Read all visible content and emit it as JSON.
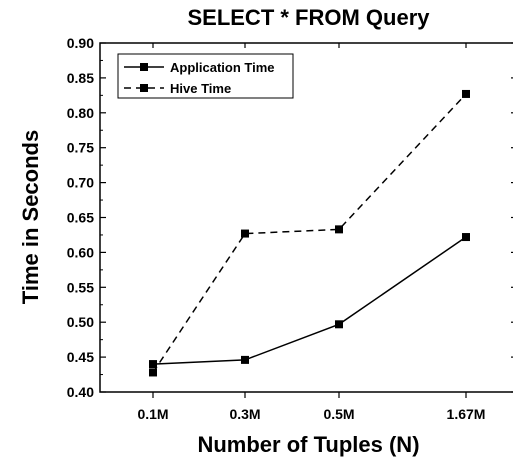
{
  "chart_data": {
    "type": "line",
    "title": "SELECT * FROM Query",
    "xlabel": "Number of Tuples (N)",
    "ylabel": "Time in Seconds",
    "categories": [
      "0.1M",
      "0.3M",
      "0.5M",
      "1.67M"
    ],
    "ylim": [
      0.4,
      0.9
    ],
    "yticks": [
      "0.40",
      "0.45",
      "0.50",
      "0.55",
      "0.60",
      "0.65",
      "0.70",
      "0.75",
      "0.80",
      "0.85",
      "0.90"
    ],
    "grid": false,
    "legend": "top-left",
    "series": [
      {
        "name": "Application Time",
        "style": "solid",
        "marker": "square",
        "color": "#000000",
        "values": [
          0.44,
          0.446,
          0.497,
          0.622
        ]
      },
      {
        "name": "Hive Time",
        "style": "dashed",
        "marker": "square",
        "color": "#000000",
        "values": [
          0.428,
          0.627,
          0.633,
          0.827
        ]
      }
    ]
  }
}
